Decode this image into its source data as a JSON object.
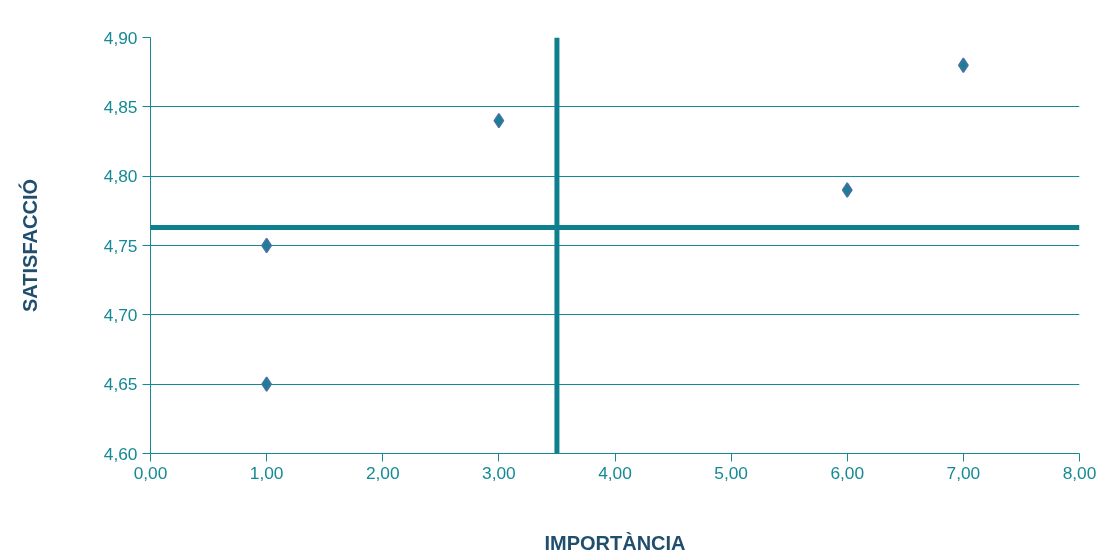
{
  "chart_data": {
    "type": "scatter",
    "xlabel": "IMPORTÀNCIA",
    "ylabel": "SATISFACCIÓ",
    "x": [
      1,
      1,
      3,
      6,
      7
    ],
    "series": [
      {
        "color": "#1a7f93",
        "values": [
          4.75,
          4.65,
          4.84,
          4.79,
          4.88
        ]
      }
    ],
    "marker": "diamond",
    "grid": "y",
    "xlim": [
      0,
      8
    ],
    "xticks": [
      {
        "value": 0,
        "label": "0,00"
      },
      {
        "value": 1,
        "label": "1,00"
      },
      {
        "value": 2,
        "label": "2,00"
      },
      {
        "value": 3,
        "label": "3,00"
      },
      {
        "value": 4,
        "label": "4,00"
      },
      {
        "value": 5,
        "label": "5,00"
      },
      {
        "value": 6,
        "label": "6,00"
      },
      {
        "value": 7,
        "label": "7,00"
      },
      {
        "value": 8,
        "label": "8,00"
      }
    ],
    "ylim": [
      4.6,
      4.9
    ],
    "yticks": [
      {
        "value": 4.6,
        "label": "4,60"
      },
      {
        "value": 4.65,
        "label": "4,65"
      },
      {
        "value": 4.7,
        "label": "4,70"
      },
      {
        "value": 4.75,
        "label": "4,75"
      },
      {
        "value": 4.8,
        "label": "4,80"
      },
      {
        "value": 4.85,
        "label": "4,85"
      },
      {
        "value": 4.9,
        "label": "4,90"
      }
    ],
    "ref_lines": [
      {
        "axis": "x",
        "value": 3.5,
        "color": "#0e7f8c"
      },
      {
        "axis": "y",
        "value": 4.763,
        "color": "#0e7f8c"
      }
    ]
  }
}
